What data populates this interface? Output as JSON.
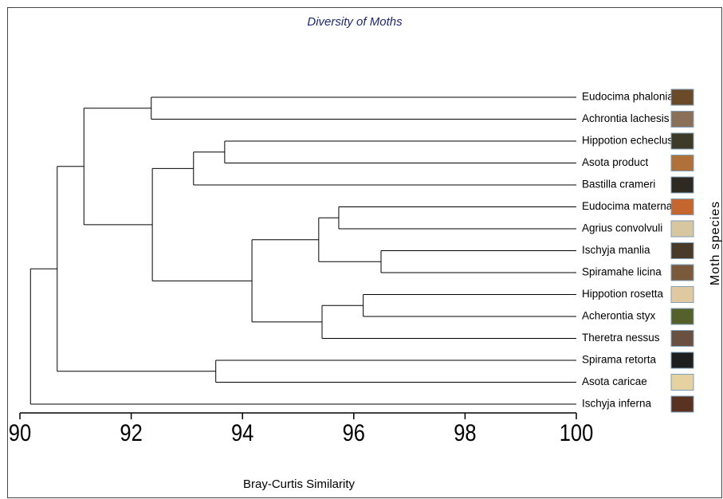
{
  "chart_data": {
    "type": "dendrogram",
    "title": "Diversity of Moths",
    "x_label": "Bray-Curtis Similarity",
    "y_label": "Moth species",
    "xlim": [
      90,
      100
    ],
    "xticks": [
      90,
      92,
      94,
      96,
      98,
      100
    ],
    "tree": {
      "value": 90.19,
      "children": [
        {
          "value": 90.67,
          "children": [
            {
              "value": 91.15,
              "children": [
                {
                  "value": 92.36,
                  "children": [
                    "Eudocima phalonia",
                    "Achrontia lachesis"
                  ]
                },
                {
                  "value": 92.38,
                  "children": [
                    {
                      "value": 93.12,
                      "children": [
                        {
                          "value": 93.68,
                          "children": [
                            "Hippotion echeclus",
                            "Asota product"
                          ]
                        },
                        "Bastilla crameri"
                      ]
                    },
                    {
                      "value": 94.17,
                      "children": [
                        {
                          "value": 95.37,
                          "children": [
                            {
                              "value": 95.73,
                              "children": [
                                "Eudocima materna",
                                "Agrius convolvuli"
                              ]
                            },
                            {
                              "value": 96.49,
                              "children": [
                                "Ischyja manlia",
                                "Spiramahe licina"
                              ]
                            }
                          ]
                        },
                        {
                          "value": 95.43,
                          "children": [
                            {
                              "value": 96.17,
                              "children": [
                                "Hippotion rosetta",
                                "Acherontia styx"
                              ]
                            },
                            "Theretra nessus"
                          ]
                        }
                      ]
                    }
                  ]
                }
              ]
            },
            {
              "value": 93.52,
              "children": [
                "Spirama retorta",
                "Asota caricae"
              ]
            }
          ]
        },
        "Ischyja inferna"
      ]
    }
  }
}
